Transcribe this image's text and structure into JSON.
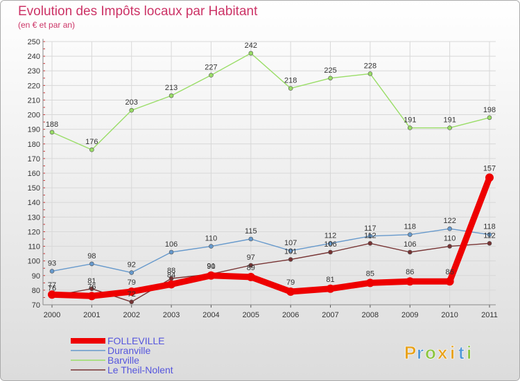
{
  "chart_data": {
    "type": "line",
    "title": "Evolution des Impôts locaux par Habitant",
    "subtitle": "(en € et par an)",
    "xlabel": "",
    "ylabel": "",
    "ylim": [
      70,
      250
    ],
    "yticks": [
      70,
      80,
      90,
      100,
      110,
      120,
      130,
      140,
      150,
      160,
      170,
      180,
      190,
      200,
      210,
      220,
      230,
      240,
      250
    ],
    "categories": [
      "2000",
      "2001",
      "2002",
      "2003",
      "2004",
      "2005",
      "2006",
      "2007",
      "2008",
      "2009",
      "2010",
      "2011"
    ],
    "grid": true,
    "legend_position": "bottom-left",
    "series": [
      {
        "name": "FOLLEVILLE",
        "color": "#ee0000",
        "values": [
          77,
          76,
          79,
          84,
          90,
          89,
          79,
          81,
          85,
          86,
          86,
          157
        ]
      },
      {
        "name": "Duranville",
        "color": "#6699cc",
        "values": [
          93,
          98,
          92,
          106,
          110,
          115,
          107,
          112,
          117,
          118,
          122,
          118
        ]
      },
      {
        "name": "Barville",
        "color": "#99dd66",
        "values": [
          188,
          176,
          203,
          213,
          227,
          242,
          218,
          225,
          228,
          191,
          191,
          198
        ]
      },
      {
        "name": "Le Theil-Nolent",
        "color": "#773333",
        "values": [
          76,
          81,
          72,
          88,
          91,
          97,
          101,
          106,
          112,
          106,
          110,
          112
        ]
      }
    ]
  },
  "brand": {
    "letters": [
      "P",
      "r",
      "o",
      "x",
      "i",
      "t",
      "i"
    ],
    "colors": [
      "#e8a21c",
      "#4f96d6",
      "#8cc43f",
      "#e8a21c",
      "#e8a21c",
      "#4f96d6",
      "#8cc43f"
    ]
  }
}
